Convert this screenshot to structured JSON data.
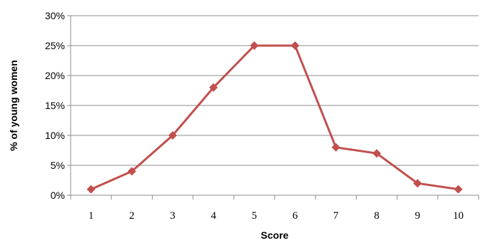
{
  "chart_data": {
    "type": "line",
    "title": "",
    "xlabel": "Score",
    "ylabel": "% of young women",
    "categories": [
      "1",
      "2",
      "3",
      "4",
      "5",
      "6",
      "7",
      "8",
      "9",
      "10"
    ],
    "y_tick_labels": [
      "0%",
      "5%",
      "10%",
      "15%",
      "20%",
      "25%",
      "30%"
    ],
    "ylim": [
      0,
      30
    ],
    "grid": true,
    "legend": "none",
    "series": [
      {
        "values": [
          1,
          4,
          10,
          18,
          25,
          25,
          8,
          7,
          2,
          1
        ],
        "color": "#c0504d",
        "marker": "diamond"
      }
    ]
  }
}
